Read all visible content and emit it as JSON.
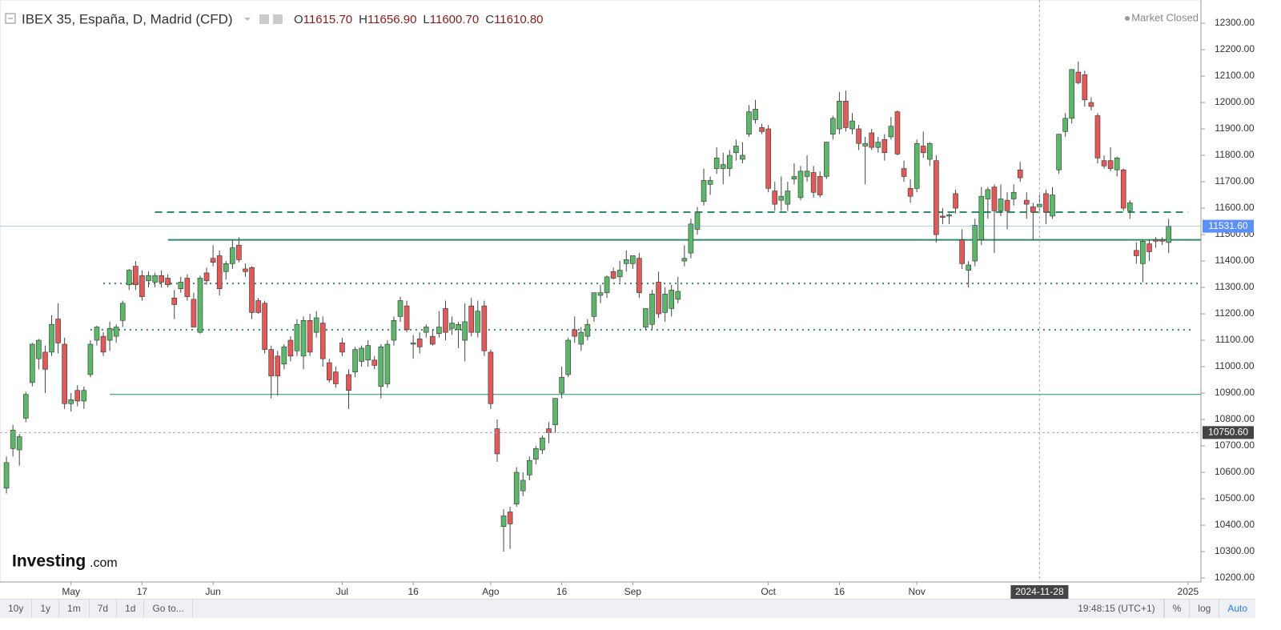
{
  "header": {
    "title": "IBEX 35, España, D, Madrid (CFD)",
    "ohlc": [
      {
        "label": "O",
        "value": "11615.70"
      },
      {
        "label": "H",
        "value": "11656.90"
      },
      {
        "label": "L",
        "value": "11600.70"
      },
      {
        "label": "C",
        "value": "11610.80"
      }
    ],
    "status": "Market Closed"
  },
  "chart_data": {
    "type": "candlestick",
    "xlim": [
      -1,
      185
    ],
    "xticks": [
      {
        "value": 10,
        "label": "May"
      },
      {
        "value": 21,
        "label": "17"
      },
      {
        "value": 32,
        "label": "Jun"
      },
      {
        "value": 52,
        "label": "Jul"
      },
      {
        "value": 63,
        "label": "16"
      },
      {
        "value": 75,
        "label": "Ago"
      },
      {
        "value": 86,
        "label": "16"
      },
      {
        "value": 97,
        "label": "Sep"
      },
      {
        "value": 118,
        "label": "Oct"
      },
      {
        "value": 129,
        "label": "16"
      },
      {
        "value": 141,
        "label": "Nov"
      },
      {
        "value": 183,
        "label": "2025"
      }
    ],
    "ylim": [
      10185,
      12388
    ],
    "yticks": [
      {
        "value": 10200,
        "label": "10200.00"
      },
      {
        "value": 10300,
        "label": "10300.00"
      },
      {
        "value": 10400,
        "label": "10400.00"
      },
      {
        "value": 10500,
        "label": "10500.00"
      },
      {
        "value": 10600,
        "label": "10600.00"
      },
      {
        "value": 10700,
        "label": "10700.00"
      },
      {
        "value": 10800,
        "label": "10800.00"
      },
      {
        "value": 10900,
        "label": "10900.00"
      },
      {
        "value": 11000,
        "label": "11000.00"
      },
      {
        "value": 11100,
        "label": "11100.00"
      },
      {
        "value": 11200,
        "label": "11200.00"
      },
      {
        "value": 11300,
        "label": "11300.00"
      },
      {
        "value": 11400,
        "label": "11400.00"
      },
      {
        "value": 11500,
        "label": "11500.00"
      },
      {
        "value": 11600,
        "label": "11600.00"
      },
      {
        "value": 11700,
        "label": "11700.00"
      },
      {
        "value": 11800,
        "label": "11800.00"
      },
      {
        "value": 11900,
        "label": "11900.00"
      },
      {
        "value": 12000,
        "label": "12000.00"
      },
      {
        "value": 12100,
        "label": "12100.00"
      },
      {
        "value": 12200,
        "label": "12200.00"
      },
      {
        "value": 12300,
        "label": "12300.00"
      }
    ],
    "up_color": "#5cb76b",
    "down_color": "#e05a5a",
    "ohlc": [
      [
        10540,
        10660,
        10520,
        10637
      ],
      [
        10690,
        10780,
        10660,
        10760
      ],
      [
        10685,
        10745,
        10625,
        10735
      ],
      [
        10805,
        10905,
        10790,
        10895
      ],
      [
        10940,
        11090,
        10925,
        11085
      ],
      [
        11030,
        11105,
        10990,
        11100
      ],
      [
        11055,
        11080,
        10900,
        10990
      ],
      [
        11055,
        11195,
        11040,
        11160
      ],
      [
        11180,
        11240,
        11050,
        11090
      ],
      [
        11085,
        11110,
        10840,
        10860
      ],
      [
        10860,
        10900,
        10830,
        10875
      ],
      [
        10910,
        10930,
        10850,
        10870
      ],
      [
        10870,
        10925,
        10840,
        10910
      ],
      [
        10970,
        11100,
        10960,
        11085
      ],
      [
        11100,
        11155,
        11080,
        11150
      ],
      [
        11115,
        11130,
        11040,
        11055
      ],
      [
        11100,
        11170,
        11060,
        11145
      ],
      [
        11115,
        11160,
        11090,
        11150
      ],
      [
        11175,
        11250,
        11150,
        11240
      ],
      [
        11310,
        11370,
        11290,
        11365
      ],
      [
        11380,
        11400,
        11290,
        11310
      ],
      [
        11345,
        11365,
        11250,
        11265
      ],
      [
        11325,
        11360,
        11300,
        11345
      ],
      [
        11320,
        11355,
        11300,
        11345
      ],
      [
        11345,
        11365,
        11300,
        11320
      ],
      [
        11335,
        11350,
        11300,
        11310
      ],
      [
        11260,
        11290,
        11180,
        11235
      ],
      [
        11295,
        11340,
        11280,
        11320
      ],
      [
        11335,
        11350,
        11250,
        11265
      ],
      [
        11255,
        11280,
        11150,
        11150
      ],
      [
        11130,
        11345,
        11125,
        11335
      ],
      [
        11355,
        11375,
        11310,
        11325
      ],
      [
        11410,
        11460,
        11380,
        11395
      ],
      [
        11420,
        11440,
        11270,
        11295
      ],
      [
        11360,
        11400,
        11330,
        11390
      ],
      [
        11390,
        11480,
        11370,
        11450
      ],
      [
        11460,
        11490,
        11395,
        11405
      ],
      [
        11370,
        11390,
        11340,
        11360
      ],
      [
        11375,
        11380,
        11180,
        11205
      ],
      [
        11250,
        11260,
        11200,
        11205
      ],
      [
        11240,
        11250,
        11050,
        11065
      ],
      [
        11065,
        11080,
        10880,
        10965
      ],
      [
        11040,
        11060,
        10890,
        10965
      ],
      [
        11010,
        11085,
        10990,
        11075
      ],
      [
        11100,
        11115,
        11020,
        11040
      ],
      [
        11060,
        11180,
        11040,
        11160
      ],
      [
        11040,
        11190,
        10990,
        11175
      ],
      [
        11175,
        11200,
        11040,
        11055
      ],
      [
        11130,
        11210,
        11110,
        11185
      ],
      [
        11165,
        11190,
        11000,
        11030
      ],
      [
        11015,
        11030,
        10940,
        10950
      ],
      [
        10980,
        11000,
        10920,
        10935
      ],
      [
        11090,
        11110,
        11040,
        11055
      ],
      [
        10970,
        10990,
        10840,
        10910
      ],
      [
        10980,
        11075,
        10960,
        11065
      ],
      [
        11020,
        11080,
        11000,
        11070
      ],
      [
        11025,
        11100,
        11000,
        11080
      ],
      [
        11025,
        11040,
        10990,
        11005
      ],
      [
        10925,
        11085,
        10880,
        11075
      ],
      [
        10935,
        11100,
        10920,
        11085
      ],
      [
        11100,
        11190,
        11080,
        11175
      ],
      [
        11190,
        11265,
        11170,
        11250
      ],
      [
        11230,
        11250,
        11130,
        11140
      ],
      [
        11085,
        11120,
        11030,
        11090
      ],
      [
        11105,
        11130,
        11050,
        11075
      ],
      [
        11130,
        11160,
        11110,
        11150
      ],
      [
        11115,
        11140,
        11080,
        11085
      ],
      [
        11125,
        11210,
        11110,
        11150
      ],
      [
        11220,
        11250,
        11100,
        11130
      ],
      [
        11145,
        11190,
        11120,
        11165
      ],
      [
        11140,
        11170,
        11070,
        11160
      ],
      [
        11100,
        11240,
        11020,
        11170
      ],
      [
        11230,
        11260,
        11115,
        11130
      ],
      [
        11130,
        11250,
        11110,
        11210
      ],
      [
        11230,
        11250,
        11040,
        11060
      ],
      [
        11055,
        11065,
        10840,
        10860
      ],
      [
        10765,
        10800,
        10640,
        10670
      ],
      [
        10395,
        10460,
        10300,
        10435
      ],
      [
        10450,
        10470,
        10310,
        10405
      ],
      [
        10480,
        10620,
        10470,
        10600
      ],
      [
        10530,
        10600,
        10510,
        10570
      ],
      [
        10590,
        10660,
        10570,
        10645
      ],
      [
        10650,
        10700,
        10630,
        10690
      ],
      [
        10685,
        10740,
        10670,
        10730
      ],
      [
        10765,
        10790,
        10710,
        10750
      ],
      [
        10780,
        10880,
        10750,
        10880
      ],
      [
        10900,
        11000,
        10880,
        10960
      ],
      [
        10970,
        11110,
        10960,
        11100
      ],
      [
        11140,
        11190,
        11090,
        11115
      ],
      [
        11085,
        11150,
        11060,
        11130
      ],
      [
        11115,
        11180,
        11100,
        11160
      ],
      [
        11190,
        11280,
        11170,
        11280
      ],
      [
        11270,
        11310,
        11240,
        11280
      ],
      [
        11280,
        11345,
        11260,
        11340
      ],
      [
        11360,
        11375,
        11330,
        11335
      ],
      [
        11340,
        11400,
        11320,
        11365
      ],
      [
        11390,
        11440,
        11360,
        11405
      ],
      [
        11390,
        11420,
        11370,
        11420
      ],
      [
        11410,
        11430,
        11260,
        11280
      ],
      [
        11150,
        11220,
        11140,
        11220
      ],
      [
        11160,
        11290,
        11140,
        11275
      ],
      [
        11320,
        11360,
        11185,
        11200
      ],
      [
        11205,
        11300,
        11170,
        11275
      ],
      [
        11220,
        11310,
        11190,
        11290
      ],
      [
        11255,
        11340,
        11240,
        11285
      ],
      [
        11400,
        11460,
        11380,
        11410
      ],
      [
        11430,
        11560,
        11410,
        11540
      ],
      [
        11520,
        11605,
        11500,
        11585
      ],
      [
        11625,
        11750,
        11610,
        11705
      ],
      [
        11690,
        11720,
        11650,
        11705
      ],
      [
        11750,
        11830,
        11730,
        11790
      ],
      [
        11750,
        11810,
        11690,
        11765
      ],
      [
        11750,
        11820,
        11720,
        11800
      ],
      [
        11810,
        11860,
        11780,
        11835
      ],
      [
        11785,
        11850,
        11770,
        11800
      ],
      [
        11880,
        11990,
        11870,
        11965
      ],
      [
        11935,
        12010,
        11920,
        11975
      ],
      [
        11905,
        11920,
        11880,
        11890
      ],
      [
        11900,
        11915,
        11660,
        11675
      ],
      [
        11665,
        11700,
        11590,
        11615
      ],
      [
        11630,
        11720,
        11590,
        11645
      ],
      [
        11615,
        11700,
        11590,
        11665
      ],
      [
        11710,
        11770,
        11690,
        11720
      ],
      [
        11640,
        11760,
        11630,
        11740
      ],
      [
        11720,
        11800,
        11700,
        11740
      ],
      [
        11735,
        11760,
        11640,
        11660
      ],
      [
        11720,
        11740,
        11640,
        11650
      ],
      [
        11720,
        11850,
        11710,
        11850
      ],
      [
        11880,
        11950,
        11860,
        11940
      ],
      [
        11900,
        12040,
        11880,
        12005
      ],
      [
        12005,
        12045,
        11890,
        11905
      ],
      [
        11900,
        11960,
        11880,
        11930
      ],
      [
        11900,
        11915,
        11820,
        11845
      ],
      [
        11835,
        11870,
        11690,
        11845
      ],
      [
        11885,
        11900,
        11820,
        11830
      ],
      [
        11830,
        11870,
        11810,
        11850
      ],
      [
        11860,
        11880,
        11780,
        11810
      ],
      [
        11870,
        11945,
        11860,
        11910
      ],
      [
        11965,
        11970,
        11800,
        11805
      ],
      [
        11750,
        11780,
        11700,
        11720
      ],
      [
        11675,
        11710,
        11620,
        11645
      ],
      [
        11675,
        11860,
        11660,
        11845
      ],
      [
        11835,
        11890,
        11790,
        11810
      ],
      [
        11785,
        11850,
        11760,
        11845
      ],
      [
        11780,
        11800,
        11470,
        11500
      ],
      [
        11570,
        11600,
        11540,
        11565
      ],
      [
        11570,
        11580,
        11540,
        11575
      ],
      [
        11655,
        11670,
        11580,
        11600
      ],
      [
        11480,
        11520,
        11370,
        11390
      ],
      [
        11365,
        11400,
        11300,
        11385
      ],
      [
        11400,
        11560,
        11380,
        11535
      ],
      [
        11480,
        11680,
        11460,
        11645
      ],
      [
        11635,
        11680,
        11560,
        11670
      ],
      [
        11680,
        11690,
        11430,
        11590
      ],
      [
        11590,
        11690,
        11570,
        11635
      ],
      [
        11630,
        11660,
        11520,
        11590
      ],
      [
        11635,
        11690,
        11610,
        11660
      ],
      [
        11745,
        11775,
        11700,
        11715
      ],
      [
        11630,
        11660,
        11560,
        11615
      ],
      [
        11605,
        11620,
        11480,
        11585
      ],
      [
        11605,
        11650,
        11590,
        11615
      ],
      [
        11655,
        11670,
        11540,
        11585
      ],
      [
        11570,
        11680,
        11560,
        11650
      ],
      [
        11745,
        11880,
        11730,
        11880
      ],
      [
        11890,
        11960,
        11870,
        11940
      ],
      [
        11940,
        12125,
        11920,
        12125
      ],
      [
        12115,
        12155,
        12070,
        12075
      ],
      [
        12105,
        12120,
        11985,
        12010
      ],
      [
        12000,
        12020,
        11970,
        11985
      ],
      [
        11950,
        11960,
        11770,
        11790
      ],
      [
        11780,
        11800,
        11750,
        11760
      ],
      [
        11780,
        11830,
        11740,
        11750
      ],
      [
        11745,
        11795,
        11720,
        11790
      ],
      [
        11745,
        11750,
        11590,
        11600
      ],
      [
        11590,
        11630,
        11560,
        11620
      ],
      [
        11440,
        11470,
        11390,
        11420
      ],
      [
        11390,
        11480,
        11320,
        11475
      ],
      [
        11465,
        11480,
        11400,
        11435
      ],
      [
        11480,
        11490,
        11450,
        11475
      ],
      [
        11480,
        11490,
        11460,
        11475
      ],
      [
        11470,
        11560,
        11430,
        11531.6
      ]
    ],
    "levels": [
      {
        "value": 11585,
        "style": "dashed",
        "color": "#2e8b66",
        "from": 23,
        "to": 183
      },
      {
        "value": 11480,
        "style": "solid",
        "color": "#2e8b66",
        "from": 25,
        "to": 185
      },
      {
        "value": 11315,
        "style": "dotted",
        "color": "#2e8b66",
        "from": 15,
        "to": 185
      },
      {
        "value": 11140,
        "style": "dotted",
        "color": "#2e8b66",
        "from": 13,
        "to": 184
      },
      {
        "value": 10895,
        "style": "thin",
        "color": "#3a9a78",
        "from": 16,
        "to": 185
      }
    ],
    "last_price": {
      "value": 11531.6,
      "label": "11531.60",
      "color": "#5b8ff9"
    },
    "crosshair": {
      "x": 160,
      "x_label": "2024-11-28",
      "y": 10750.6,
      "y_label": "10750.60"
    }
  },
  "logo": {
    "brand": "Investing",
    "suffix": ".com"
  },
  "toolbar": {
    "ranges": [
      "10y",
      "1y",
      "1m",
      "7d",
      "1d"
    ],
    "goto": "Go to...",
    "clock": "19:48:15 (UTC+1)",
    "options": [
      "%",
      "log",
      "Auto"
    ]
  }
}
